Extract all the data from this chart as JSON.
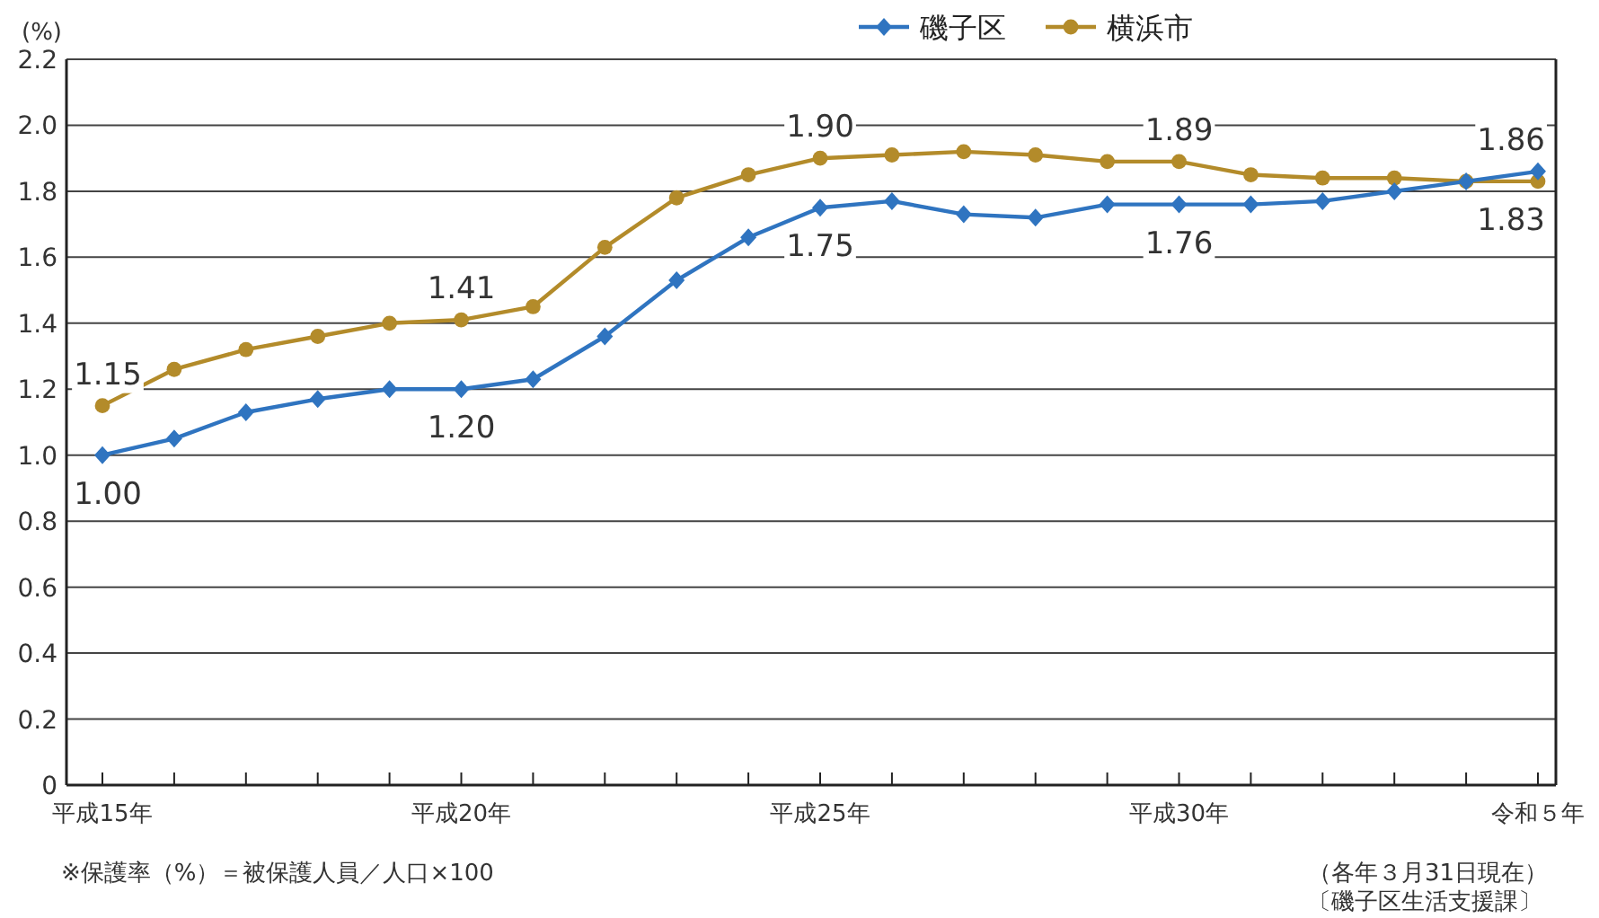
{
  "chart_data": {
    "type": "line",
    "ylabel": "(%)",
    "categories": [
      "平成15年",
      null,
      null,
      null,
      null,
      "平成20年",
      null,
      null,
      null,
      null,
      "平成25年",
      null,
      null,
      null,
      null,
      "平成30年",
      null,
      null,
      null,
      null,
      "令和５年"
    ],
    "series": [
      {
        "name": "磯子区",
        "color": "#2f74c0",
        "marker": "diamond",
        "values": [
          1.0,
          1.05,
          1.13,
          1.17,
          1.2,
          1.2,
          1.23,
          1.36,
          1.53,
          1.66,
          1.75,
          1.77,
          1.73,
          1.72,
          1.76,
          1.76,
          1.76,
          1.77,
          1.8,
          1.83,
          1.86
        ],
        "value_labels": [
          "1.00",
          null,
          null,
          null,
          null,
          "1.20",
          null,
          null,
          null,
          null,
          "1.75",
          null,
          null,
          null,
          null,
          "1.76",
          null,
          null,
          null,
          null,
          "1.86"
        ]
      },
      {
        "name": "横浜市",
        "color": "#b38b2a",
        "marker": "circle",
        "values": [
          1.15,
          1.26,
          1.32,
          1.36,
          1.4,
          1.41,
          1.45,
          1.63,
          1.78,
          1.85,
          1.9,
          1.91,
          1.92,
          1.91,
          1.89,
          1.89,
          1.85,
          1.84,
          1.84,
          1.83,
          1.83
        ],
        "value_labels": [
          "1.15",
          null,
          null,
          null,
          null,
          "1.41",
          null,
          null,
          null,
          null,
          "1.90",
          null,
          null,
          null,
          null,
          "1.89",
          null,
          null,
          null,
          null,
          "1.83"
        ]
      }
    ],
    "ylim": [
      0,
      2.2
    ],
    "yticks": [
      0,
      0.2,
      0.4,
      0.6,
      0.8,
      {
        "value": 1,
        "label": "1.0"
      },
      1.2,
      1.4,
      1.6,
      1.8,
      {
        "value": 2,
        "label": "2.0"
      },
      2.2
    ],
    "grid": "y",
    "legend": "top right",
    "annotations": [
      "※保護率（%）＝被保護人員／人口×100",
      "（各年３月31日現在）",
      "〔磯子区生活支援課〕"
    ]
  }
}
